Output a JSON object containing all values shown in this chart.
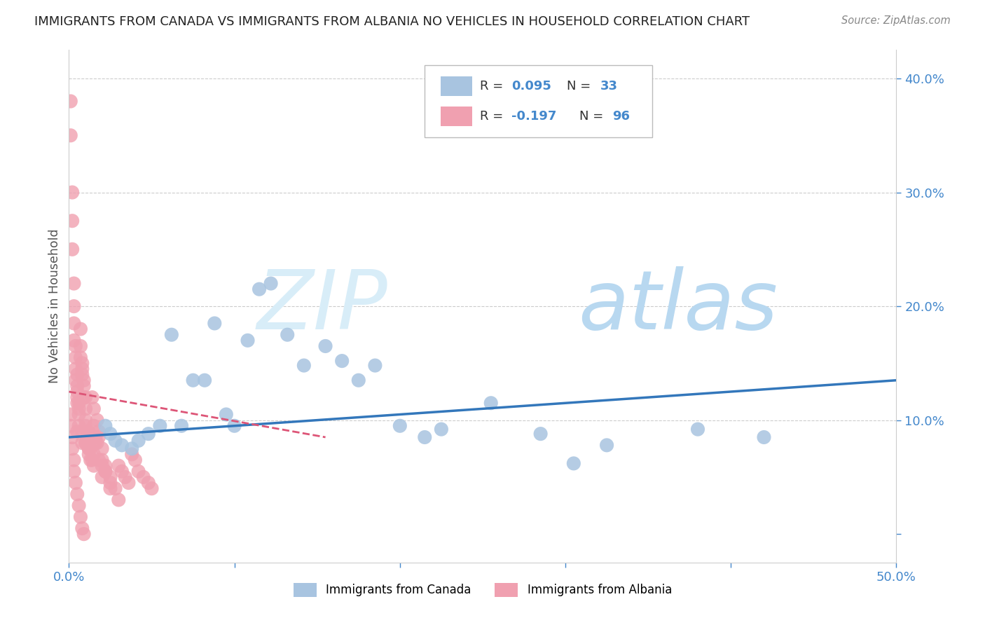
{
  "title": "IMMIGRANTS FROM CANADA VS IMMIGRANTS FROM ALBANIA NO VEHICLES IN HOUSEHOLD CORRELATION CHART",
  "source": "Source: ZipAtlas.com",
  "ylabel": "No Vehicles in Household",
  "xlim": [
    0.0,
    0.5
  ],
  "ylim": [
    -0.025,
    0.425
  ],
  "canada_color": "#a8c4e0",
  "albania_color": "#f0a0b0",
  "watermark": "ZIPatlas",
  "watermark_color": "#cce5f5",
  "grid_color": "#cccccc",
  "trendline_canada_color": "#3377bb",
  "trendline_albania_color": "#dd5577",
  "background_color": "#ffffff",
  "r_label_color": "#4488cc",
  "axis_label_color": "#4488cc",
  "canada_x": [
    0.022,
    0.025,
    0.028,
    0.032,
    0.038,
    0.042,
    0.048,
    0.055,
    0.062,
    0.068,
    0.075,
    0.082,
    0.088,
    0.095,
    0.1,
    0.108,
    0.115,
    0.122,
    0.132,
    0.142,
    0.155,
    0.165,
    0.175,
    0.185,
    0.2,
    0.215,
    0.225,
    0.255,
    0.285,
    0.305,
    0.325,
    0.38,
    0.42
  ],
  "canada_y": [
    0.095,
    0.088,
    0.082,
    0.078,
    0.075,
    0.082,
    0.088,
    0.095,
    0.175,
    0.095,
    0.135,
    0.135,
    0.185,
    0.105,
    0.095,
    0.17,
    0.215,
    0.22,
    0.175,
    0.148,
    0.165,
    0.152,
    0.135,
    0.148,
    0.095,
    0.085,
    0.092,
    0.115,
    0.088,
    0.062,
    0.078,
    0.092,
    0.085
  ],
  "albania_x": [
    0.001,
    0.001,
    0.002,
    0.002,
    0.002,
    0.003,
    0.003,
    0.003,
    0.003,
    0.004,
    0.004,
    0.004,
    0.004,
    0.005,
    0.005,
    0.005,
    0.005,
    0.005,
    0.006,
    0.006,
    0.006,
    0.006,
    0.007,
    0.007,
    0.007,
    0.008,
    0.008,
    0.008,
    0.008,
    0.009,
    0.009,
    0.009,
    0.01,
    0.01,
    0.01,
    0.01,
    0.011,
    0.011,
    0.012,
    0.012,
    0.012,
    0.013,
    0.013,
    0.014,
    0.014,
    0.015,
    0.015,
    0.016,
    0.016,
    0.017,
    0.017,
    0.018,
    0.018,
    0.02,
    0.02,
    0.022,
    0.022,
    0.025,
    0.025,
    0.028,
    0.03,
    0.032,
    0.034,
    0.036,
    0.038,
    0.04,
    0.042,
    0.045,
    0.048,
    0.05,
    0.005,
    0.008,
    0.01,
    0.012,
    0.015,
    0.018,
    0.02,
    0.022,
    0.001,
    0.001,
    0.002,
    0.002,
    0.003,
    0.003,
    0.004,
    0.005,
    0.006,
    0.007,
    0.008,
    0.009,
    0.01,
    0.012,
    0.015,
    0.02,
    0.025,
    0.03
  ],
  "albania_y": [
    0.38,
    0.35,
    0.3,
    0.275,
    0.25,
    0.22,
    0.2,
    0.185,
    0.17,
    0.165,
    0.155,
    0.145,
    0.135,
    0.14,
    0.13,
    0.125,
    0.12,
    0.115,
    0.115,
    0.11,
    0.105,
    0.095,
    0.18,
    0.165,
    0.155,
    0.15,
    0.145,
    0.14,
    0.09,
    0.135,
    0.13,
    0.12,
    0.12,
    0.11,
    0.1,
    0.095,
    0.09,
    0.085,
    0.09,
    0.08,
    0.075,
    0.075,
    0.065,
    0.065,
    0.12,
    0.11,
    0.095,
    0.085,
    0.08,
    0.08,
    0.1,
    0.09,
    0.085,
    0.075,
    0.065,
    0.06,
    0.055,
    0.05,
    0.045,
    0.04,
    0.06,
    0.055,
    0.05,
    0.045,
    0.07,
    0.065,
    0.055,
    0.05,
    0.045,
    0.04,
    0.09,
    0.08,
    0.08,
    0.075,
    0.07,
    0.065,
    0.06,
    0.055,
    0.105,
    0.095,
    0.085,
    0.075,
    0.065,
    0.055,
    0.045,
    0.035,
    0.025,
    0.015,
    0.005,
    0.0,
    0.08,
    0.07,
    0.06,
    0.05,
    0.04,
    0.03
  ],
  "trendline_canada_x0": 0.0,
  "trendline_canada_y0": 0.085,
  "trendline_canada_x1": 0.5,
  "trendline_canada_y1": 0.135,
  "trendline_albania_x0": 0.0,
  "trendline_albania_y0": 0.125,
  "trendline_albania_x1": 0.155,
  "trendline_albania_y1": 0.085
}
